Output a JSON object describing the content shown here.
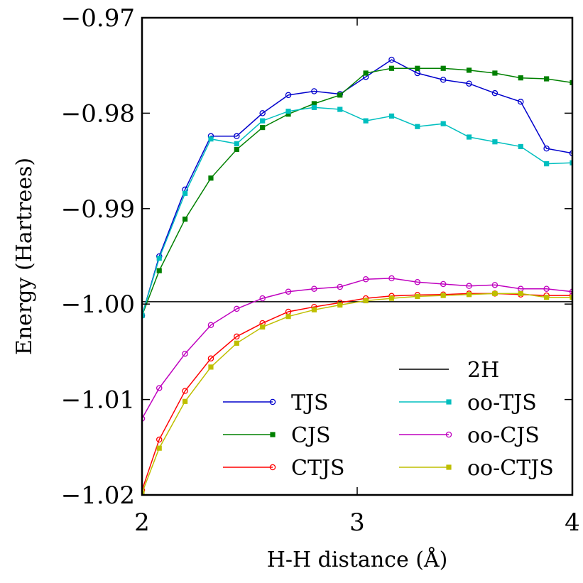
{
  "chart_data": {
    "type": "line",
    "title": "",
    "xlabel": "H-H distance (Å)",
    "ylabel": "Energy (Hartrees)",
    "xlim": [
      2,
      4
    ],
    "ylim": [
      -1.02,
      -0.97
    ],
    "xticks": [
      2,
      3,
      4
    ],
    "xtick_labels": [
      "2",
      "3",
      "4"
    ],
    "yticks": [
      -1.02,
      -1.01,
      -1.0,
      -0.99,
      -0.98,
      -0.97
    ],
    "ytick_labels": [
      "−1.02",
      "−1.01",
      "−1.00",
      "−0.99",
      "−0.98",
      "−0.97"
    ],
    "grid": false,
    "legend_position": "lower-right",
    "x": [
      2.0,
      2.08,
      2.2,
      2.32,
      2.44,
      2.56,
      2.68,
      2.8,
      2.92,
      3.04,
      3.16,
      3.28,
      3.4,
      3.52,
      3.64,
      3.76,
      3.88,
      4.0
    ],
    "hline": {
      "name": "2H",
      "y": -0.99975,
      "color": "#000000"
    },
    "series": [
      {
        "name": "TJS",
        "color": "#0000cc",
        "marker": "circle",
        "values": [
          -1.0012,
          -0.995,
          -0.988,
          -0.9824,
          -0.9824,
          -0.98,
          -0.9781,
          -0.9777,
          -0.978,
          -0.9762,
          -0.9744,
          -0.9758,
          -0.9765,
          -0.9769,
          -0.9779,
          -0.9788,
          -0.9837,
          -0.9842
        ]
      },
      {
        "name": "CJS",
        "color": "#008000",
        "marker": "square",
        "values": [
          -1.0012,
          -0.9965,
          -0.9911,
          -0.9868,
          -0.9838,
          -0.9815,
          -0.9801,
          -0.979,
          -0.9781,
          -0.9758,
          -0.9753,
          -0.9753,
          -0.9753,
          -0.9755,
          -0.9758,
          -0.9763,
          -0.9764,
          -0.9768
        ]
      },
      {
        "name": "CTJS",
        "color": "#ff0000",
        "marker": "circle",
        "values": [
          -1.0195,
          -1.0142,
          -1.0091,
          -1.0057,
          -1.0034,
          -1.002,
          -1.0008,
          -1.0003,
          -0.99985,
          -0.9994,
          -0.99915,
          -0.99905,
          -0.999,
          -0.9989,
          -0.9989,
          -0.999,
          -0.9991,
          -0.9991
        ]
      },
      {
        "name": "oo-TJS",
        "color": "#00bfbf",
        "marker": "square",
        "values": [
          -1.0012,
          -0.9952,
          -0.9884,
          -0.9827,
          -0.9832,
          -0.9808,
          -0.9798,
          -0.9794,
          -0.9796,
          -0.9808,
          -0.9803,
          -0.9814,
          -0.9811,
          -0.9825,
          -0.983,
          -0.9835,
          -0.9853,
          -0.9852
        ]
      },
      {
        "name": "oo-CJS",
        "color": "#bf00bf",
        "marker": "circle",
        "values": [
          -1.012,
          -1.0088,
          -1.0052,
          -1.0022,
          -1.0005,
          -0.9994,
          -0.9987,
          -0.9984,
          -0.9982,
          -0.9974,
          -0.9973,
          -0.9977,
          -0.9979,
          -0.9981,
          -0.998,
          -0.9984,
          -0.9984,
          -0.9987
        ]
      },
      {
        "name": "oo-CTJS",
        "color": "#bfbf00",
        "marker": "square",
        "values": [
          -1.0198,
          -1.0151,
          -1.0102,
          -1.0066,
          -1.0041,
          -1.0024,
          -1.0013,
          -1.0006,
          -1.0001,
          -0.99965,
          -0.9994,
          -0.9992,
          -0.9991,
          -0.999,
          -0.9989,
          -0.9989,
          -0.9993,
          -0.9993
        ]
      }
    ],
    "legend_left": [
      "TJS",
      "CJS",
      "CTJS"
    ],
    "legend_right": [
      "2H",
      "oo-TJS",
      "oo-CJS",
      "oo-CTJS"
    ]
  }
}
